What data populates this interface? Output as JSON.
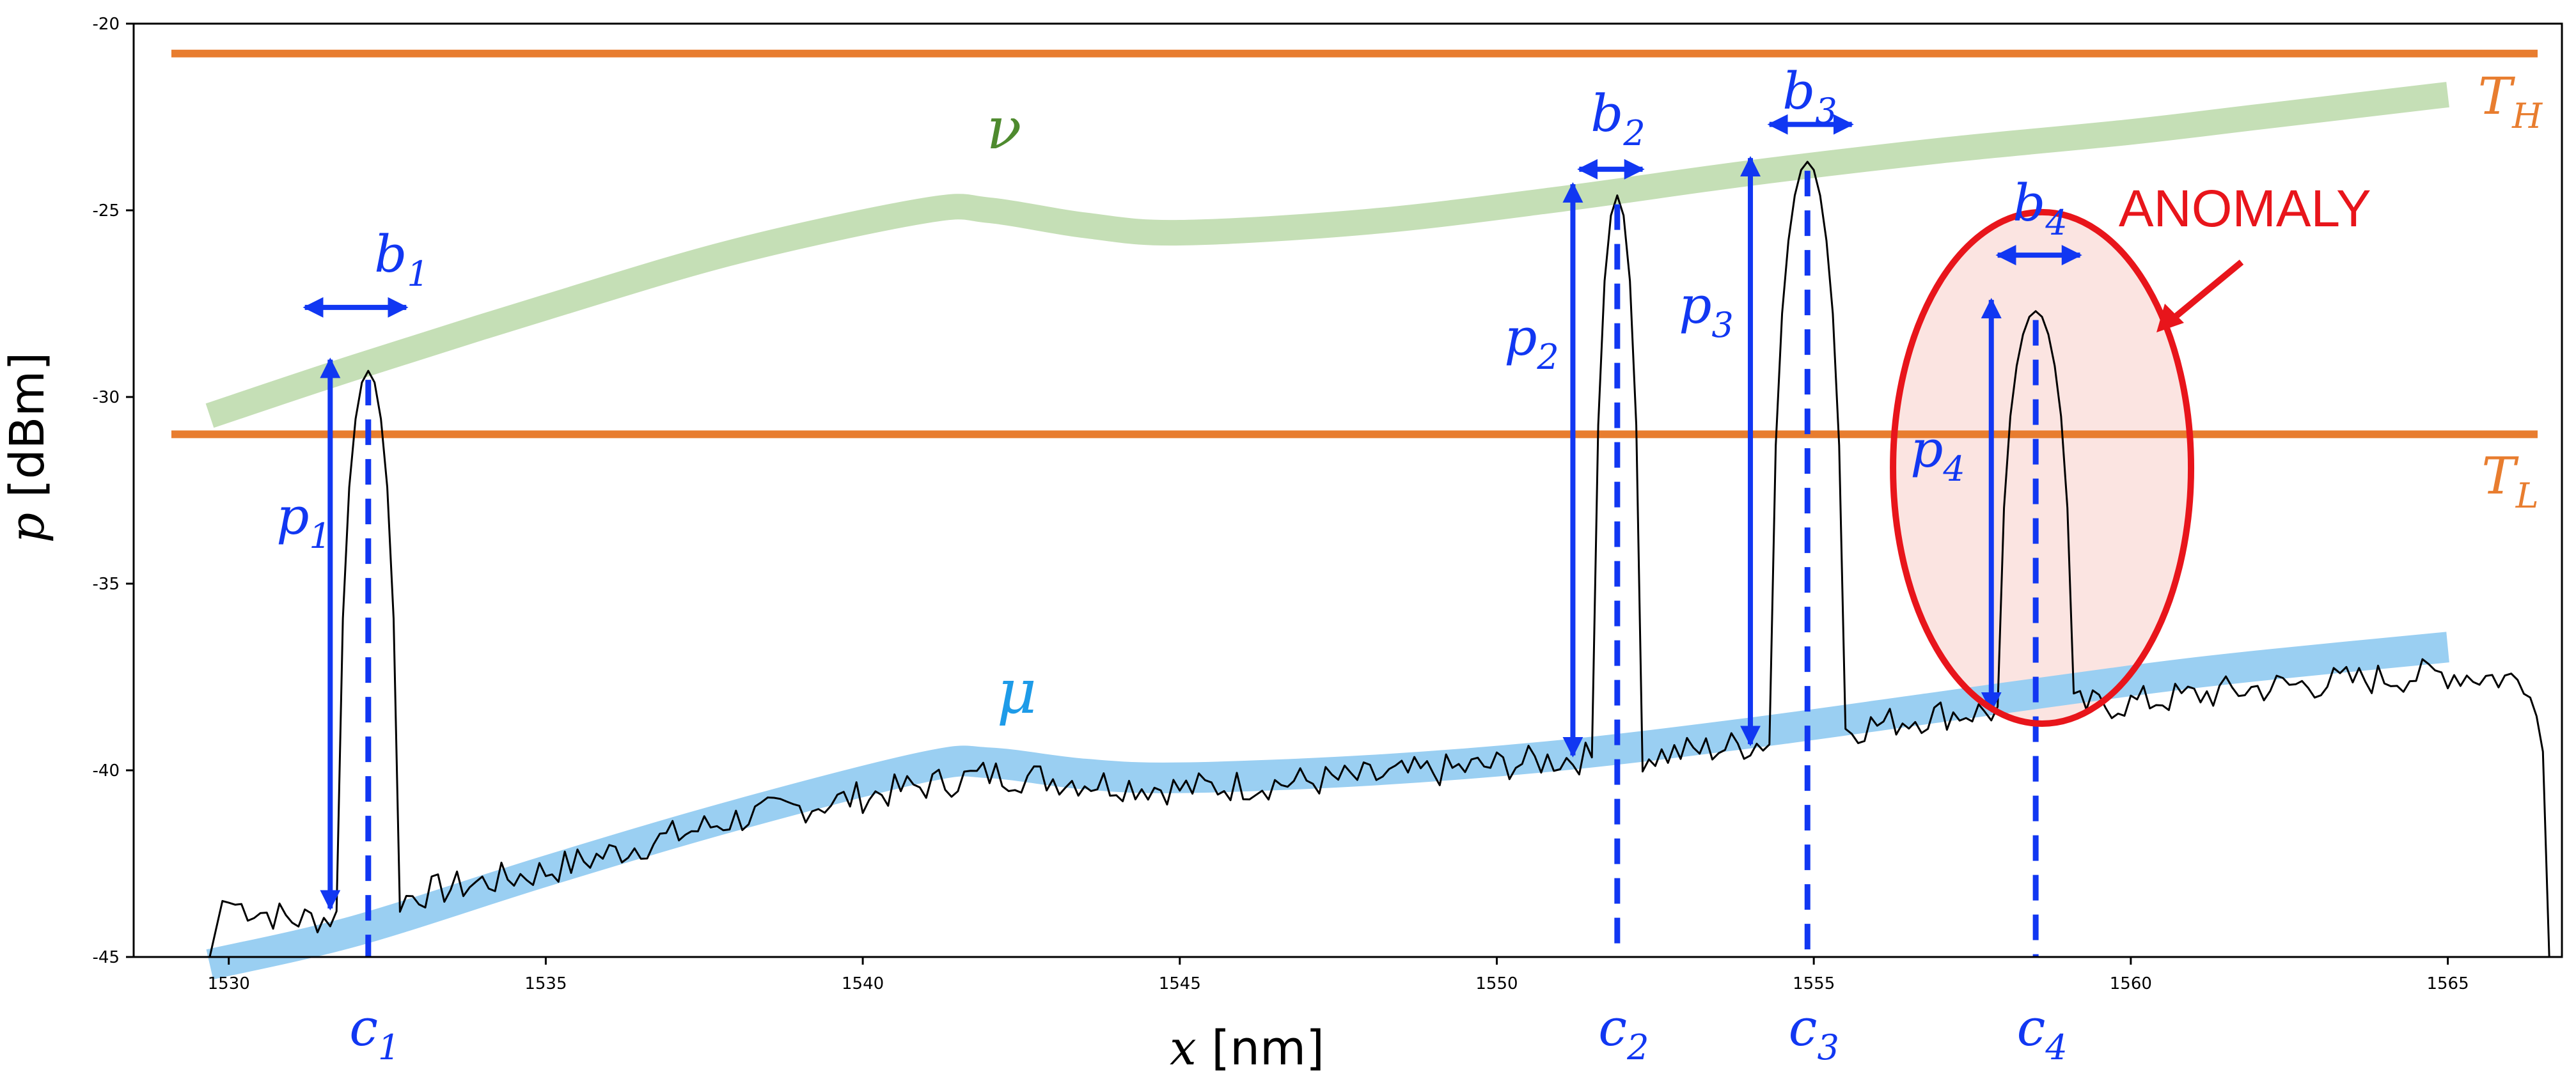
{
  "chart_data": {
    "type": "line",
    "xlabel": {
      "var": "x",
      "unit": "[nm]"
    },
    "ylabel": {
      "var": "p",
      "unit": "[dBm]"
    },
    "xlim": [
      1528.5,
      1566.8
    ],
    "ylim": [
      -45,
      -20
    ],
    "xticks": [
      1530,
      1535,
      1540,
      1545,
      1550,
      1555,
      1560,
      1565
    ],
    "yticks": [
      -20,
      -25,
      -30,
      -35,
      -40,
      -45
    ],
    "grid": false,
    "colors": {
      "spectrum": "#000000",
      "threshold": "#E87D2F",
      "nu_band": "#C5DFB6",
      "nu_label": "#4E8A2E",
      "mu_band": "#9ACFF2",
      "mu_label": "#1E9BE8",
      "annotation": "#1137F2",
      "anomaly": "#E8151B",
      "anomaly_fill": "#FBE4E1"
    },
    "thresholds": [
      {
        "label_main": "T",
        "label_sub": "H",
        "y": -20.8
      },
      {
        "label_main": "T",
        "label_sub": "L",
        "y": -31.0
      }
    ],
    "series": [
      {
        "name": "ν",
        "role": "upper-envelope",
        "points": [
          [
            1529.7,
            -30.5
          ],
          [
            1532,
            -29.2
          ],
          [
            1535,
            -27.6
          ],
          [
            1538,
            -26.1
          ],
          [
            1541,
            -25.0
          ],
          [
            1542,
            -25.0
          ],
          [
            1543.5,
            -25.4
          ],
          [
            1545,
            -25.6
          ],
          [
            1548,
            -25.3
          ],
          [
            1551,
            -24.7
          ],
          [
            1554,
            -24.0
          ],
          [
            1557,
            -23.4
          ],
          [
            1560,
            -22.9
          ],
          [
            1562,
            -22.5
          ],
          [
            1565,
            -21.9
          ]
        ]
      },
      {
        "name": "μ",
        "role": "lower-envelope",
        "points": [
          [
            1529.7,
            -45.2
          ],
          [
            1532,
            -44.3
          ],
          [
            1535,
            -42.7
          ],
          [
            1538,
            -41.2
          ],
          [
            1541,
            -39.9
          ],
          [
            1542,
            -39.8
          ],
          [
            1543.5,
            -40.1
          ],
          [
            1545,
            -40.2
          ],
          [
            1548,
            -40.0
          ],
          [
            1551,
            -39.6
          ],
          [
            1554,
            -39.0
          ],
          [
            1557,
            -38.3
          ],
          [
            1560,
            -37.6
          ],
          [
            1562,
            -37.2
          ],
          [
            1565,
            -36.7
          ]
        ]
      },
      {
        "name": "",
        "role": "spectrum",
        "baseline": [
          [
            1529.7,
            -45.0
          ],
          [
            1529.9,
            -43.5
          ],
          [
            1531,
            -44.0
          ],
          [
            1532,
            -43.9
          ],
          [
            1533,
            -43.3
          ],
          [
            1535,
            -42.7
          ],
          [
            1538,
            -41.3
          ],
          [
            1540,
            -40.7
          ],
          [
            1542,
            -40.1
          ],
          [
            1543.5,
            -40.3
          ],
          [
            1545,
            -40.5
          ],
          [
            1548,
            -40.2
          ],
          [
            1551,
            -39.7
          ],
          [
            1552.5,
            -39.6
          ],
          [
            1554,
            -39.3
          ],
          [
            1557,
            -38.5
          ],
          [
            1560,
            -38.2
          ],
          [
            1562,
            -37.8
          ],
          [
            1565,
            -37.4
          ],
          [
            1566.3,
            -37.6
          ],
          [
            1566.5,
            -39.5
          ],
          [
            1566.6,
            -45.0
          ]
        ],
        "peaks": [
          {
            "center": 1532.2,
            "top": -29.3,
            "half_width": 0.45
          },
          {
            "center": 1551.9,
            "top": -24.6,
            "half_width": 0.35
          },
          {
            "center": 1554.9,
            "top": -23.7,
            "half_width": 0.55
          },
          {
            "center": 1558.5,
            "top": -27.7,
            "half_width": 0.55
          }
        ]
      }
    ],
    "channels": [
      {
        "c_main": "c",
        "c_sub": "1",
        "p_main": "p",
        "p_sub": "1",
        "b_main": "b",
        "b_sub": "1",
        "center": 1532.2,
        "p_x": 1531.6,
        "p_top": -29.0,
        "p_bottom": -43.7,
        "b_from": 1531.2,
        "b_to": 1532.8,
        "b_y": -27.6,
        "peak": -29.3
      },
      {
        "c_main": "c",
        "c_sub": "2",
        "p_main": "p",
        "p_sub": "2",
        "b_main": "b",
        "b_sub": "2",
        "center": 1551.9,
        "p_x": 1551.2,
        "p_top": -24.3,
        "p_bottom": -39.6,
        "b_from": 1551.3,
        "b_to": 1552.3,
        "b_y": -23.9,
        "peak": -24.6
      },
      {
        "c_main": "c",
        "c_sub": "3",
        "p_main": "p",
        "p_sub": "3",
        "b_main": "b",
        "b_sub": "3",
        "center": 1554.9,
        "p_x": 1554.0,
        "p_top": -23.6,
        "p_bottom": -39.3,
        "b_from": 1554.3,
        "b_to": 1555.6,
        "b_y": -22.7,
        "peak": -23.7
      },
      {
        "c_main": "c",
        "c_sub": "4",
        "p_main": "p",
        "p_sub": "4",
        "b_main": "b",
        "b_sub": "4",
        "center": 1558.5,
        "p_x": 1557.8,
        "p_top": -27.4,
        "p_bottom": -38.4,
        "b_from": 1557.9,
        "b_to": 1559.2,
        "b_y": -26.2,
        "peak": -27.7
      }
    ],
    "anomaly": {
      "label": "ANOMALY",
      "center_x": 1558.6,
      "center_y": -31.9,
      "rx": 2.35,
      "ry": 6.85,
      "label_x": 1561.8,
      "label_y": -25.0
    }
  }
}
